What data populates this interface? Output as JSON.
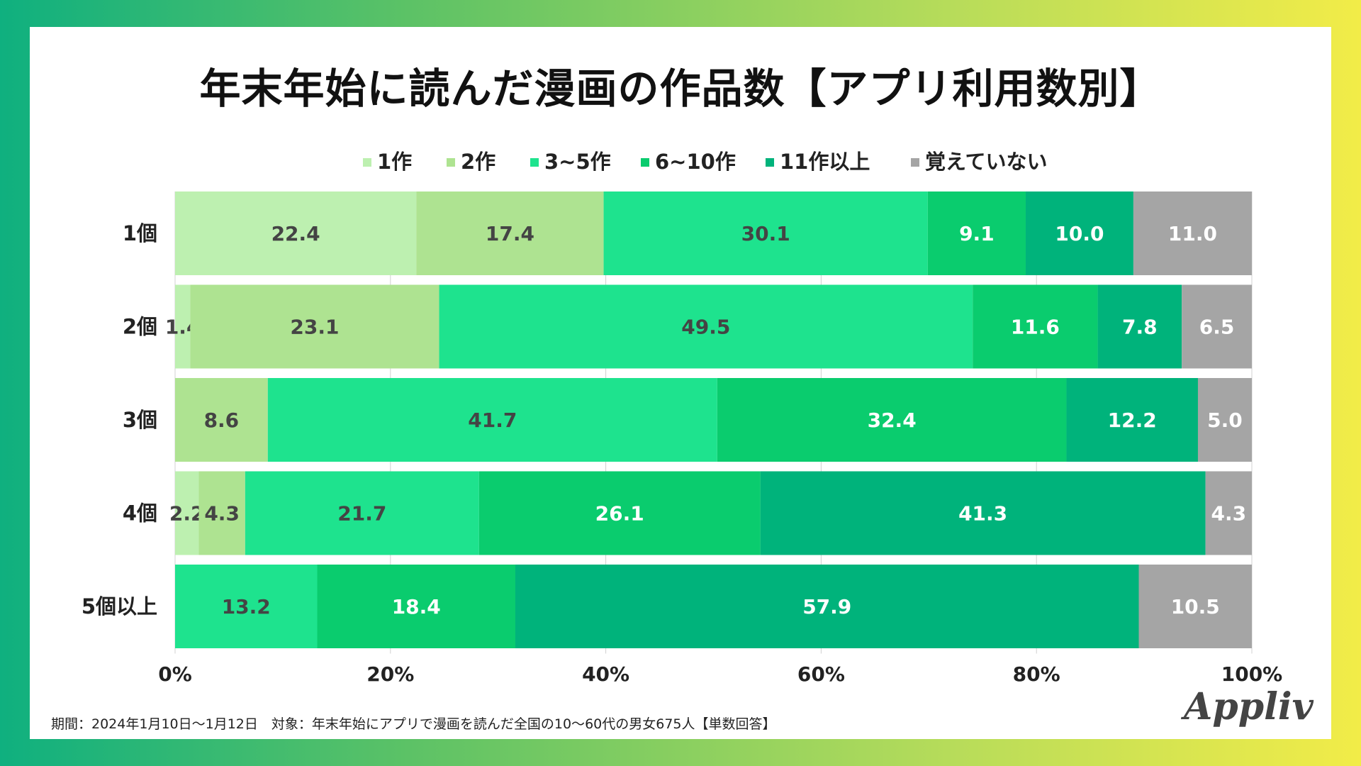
{
  "title": "年末年始に読んだ漫画の作品数【アプリ利用数別】",
  "footnote": "期間：2024年1月10日〜1月12日　対象：年末年始にアプリで漫画を読んだ全国の10〜60代の男女675人【単数回答】",
  "logo": "Appliv",
  "chart_data": {
    "type": "bar",
    "orientation": "horizontal",
    "stacked": true,
    "title": "年末年始に読んだ漫画の作品数【アプリ利用数別】",
    "categories": [
      "1個",
      "2個",
      "3個",
      "4個",
      "5個以上"
    ],
    "xlim": [
      0,
      100
    ],
    "xticks": [
      "0%",
      "20%",
      "40%",
      "60%",
      "80%",
      "100%"
    ],
    "legend_position": "top",
    "series": [
      {
        "name": "1作",
        "color": "#bdf0b0",
        "label_color": "#444444",
        "values": [
          22.4,
          1.4,
          null,
          2.2,
          null
        ]
      },
      {
        "name": "2作",
        "color": "#aee391",
        "label_color": "#444444",
        "values": [
          17.4,
          23.1,
          8.6,
          4.3,
          null
        ]
      },
      {
        "name": "3~5作",
        "color": "#1ee38e",
        "label_color": "#444444",
        "values": [
          30.1,
          49.5,
          41.7,
          21.7,
          13.2
        ]
      },
      {
        "name": "6~10作",
        "color": "#0acc6e",
        "label_color": "#ffffff",
        "values": [
          9.1,
          11.6,
          32.4,
          26.1,
          18.4
        ]
      },
      {
        "name": "11作以上",
        "color": "#00b37b",
        "label_color": "#ffffff",
        "values": [
          10.0,
          7.8,
          12.2,
          41.3,
          57.9
        ]
      },
      {
        "name": "覚えていない",
        "color": "#a5a5a5",
        "label_color": "#ffffff",
        "values": [
          11.0,
          6.5,
          5.0,
          4.3,
          10.5
        ]
      }
    ]
  }
}
